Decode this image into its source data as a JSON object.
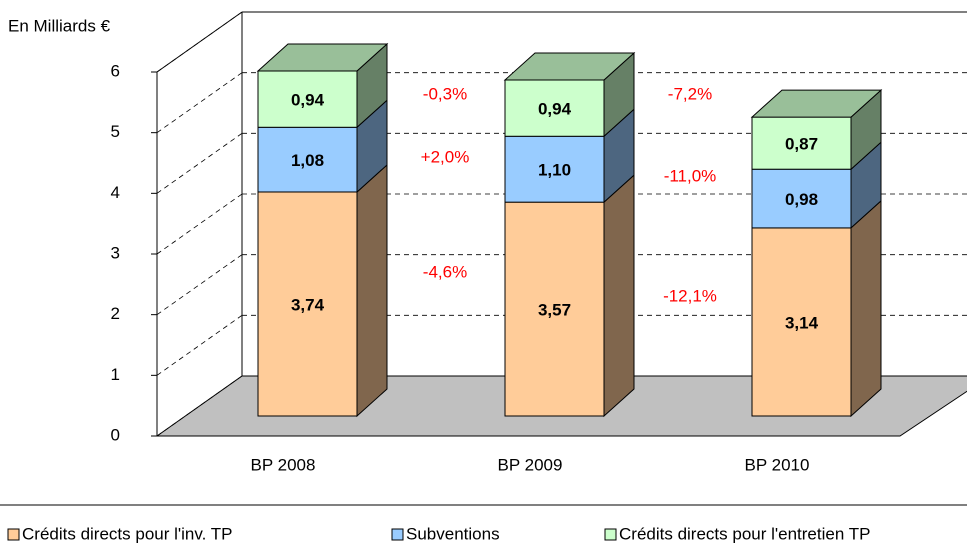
{
  "chart_data": {
    "type": "bar3d-stacked",
    "y_label": "En Milliards €",
    "categories": [
      "BP 2008",
      "BP 2009",
      "BP 2010"
    ],
    "series": [
      {
        "name": "Crédits directs pour l'inv. TP",
        "color": "#FFCC99",
        "values": [
          3.74,
          3.57,
          3.14
        ],
        "value_labels": [
          "3,74",
          "3,57",
          "3,14"
        ]
      },
      {
        "name": "Subventions",
        "color": "#99CCFF",
        "values": [
          1.08,
          1.1,
          0.98
        ],
        "value_labels": [
          "1,08",
          "1,10",
          "0,98"
        ]
      },
      {
        "name": "Crédits directs pour l'entretien TP",
        "color": "#CCFFCC",
        "values": [
          0.94,
          0.94,
          0.87
        ],
        "value_labels": [
          "0,94",
          "0,94",
          "0,87"
        ]
      }
    ],
    "annotations": [
      [
        "-4,6%",
        "+2,0%",
        "-0,3%"
      ],
      [
        "-12,1%",
        "-11,0%",
        "-7,2%"
      ]
    ],
    "annotation_color": "#FF0000",
    "ylim": [
      0,
      6
    ],
    "yticks": [
      0,
      1,
      2,
      3,
      4,
      5,
      6
    ],
    "grid": true
  }
}
